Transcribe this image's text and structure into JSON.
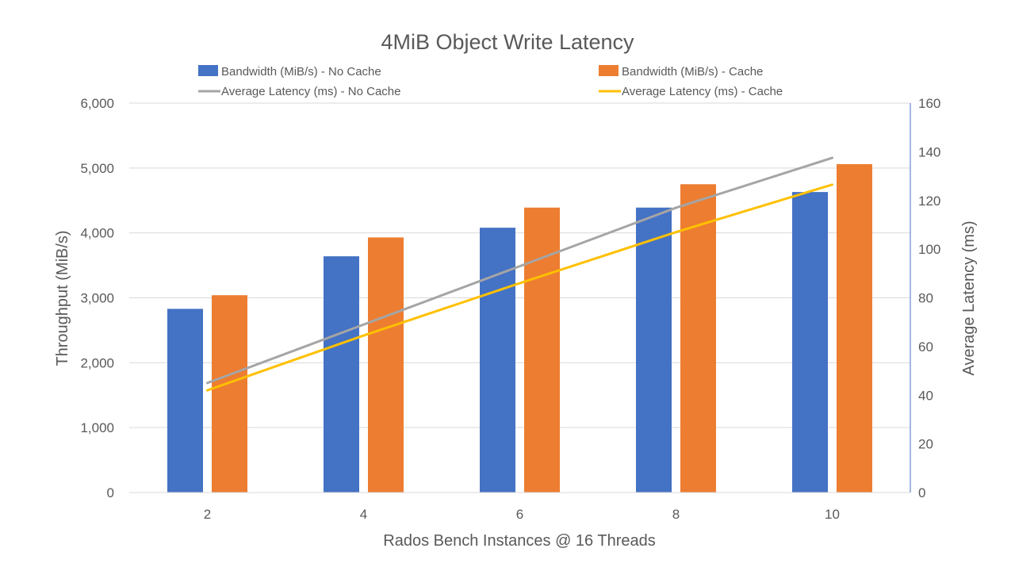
{
  "chart_data": {
    "type": "bar",
    "title": "4MiB Object Write Latency",
    "xlabel": "Rados Bench Instances @ 16 Threads",
    "ylabel": "Throughput (MiB/s)",
    "y2label": "Average Latency (ms)",
    "categories": [
      "2",
      "4",
      "6",
      "8",
      "10"
    ],
    "ylim": [
      0,
      6000
    ],
    "yticks": [
      0,
      1000,
      2000,
      3000,
      4000,
      5000,
      6000
    ],
    "ytick_labels": [
      "0",
      "1,000",
      "2,000",
      "3,000",
      "4,000",
      "5,000",
      "6,000"
    ],
    "y2lim": [
      0,
      160
    ],
    "y2ticks": [
      0,
      20,
      40,
      60,
      80,
      100,
      120,
      140,
      160
    ],
    "y2tick_labels": [
      "0",
      "20",
      "40",
      "60",
      "80",
      "100",
      "120",
      "140",
      "160"
    ],
    "grid": true,
    "legend_position": "top",
    "series": [
      {
        "name": "Bandwidth (MiB/s) - No Cache",
        "kind": "bar",
        "axis": "left",
        "color": "#4472c4",
        "values": [
          2830,
          3640,
          4080,
          4390,
          4630
        ]
      },
      {
        "name": "Bandwidth (MiB/s) - Cache",
        "kind": "bar",
        "axis": "left",
        "color": "#ed7d31",
        "values": [
          3040,
          3930,
          4390,
          4750,
          5060
        ]
      },
      {
        "name": "Average Latency (ms) - No Cache",
        "kind": "line",
        "axis": "right",
        "color": "#a5a5a5",
        "values": [
          45,
          69,
          93,
          117,
          137.5
        ]
      },
      {
        "name": "Average Latency (ms) - Cache",
        "kind": "line",
        "axis": "right",
        "color": "#ffc000",
        "values": [
          42,
          64.5,
          86,
          107,
          126.5
        ]
      }
    ]
  }
}
